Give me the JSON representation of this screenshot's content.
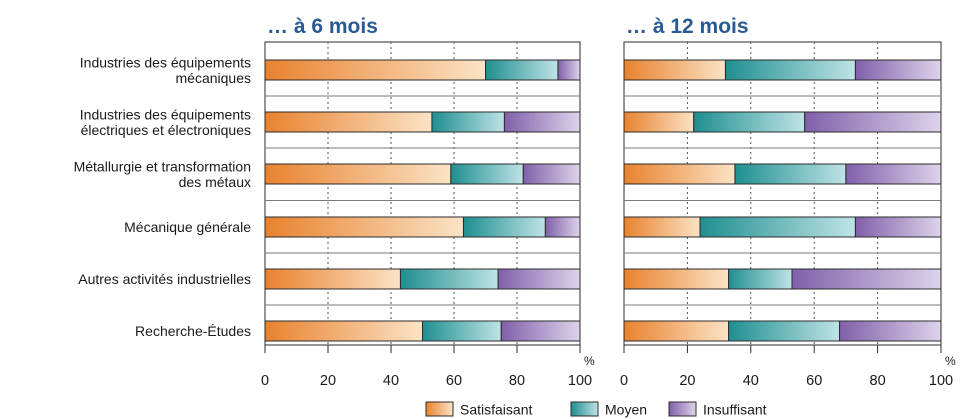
{
  "chart_data": [
    {
      "type": "bar",
      "stacked": true,
      "orientation": "horizontal",
      "title": "… à 6 mois",
      "categories": [
        [
          "Industries des équipements",
          "mécaniques"
        ],
        [
          "Industries des équipements",
          "électriques et électroniques"
        ],
        [
          "Métallurgie et transformation",
          "des métaux"
        ],
        [
          "Mécanique générale"
        ],
        [
          "Autres activités industrielles"
        ],
        [
          "Recherche-Études"
        ]
      ],
      "series": [
        {
          "name": "Satisfaisant",
          "values": [
            70,
            53,
            59,
            63,
            43,
            50
          ]
        },
        {
          "name": "Moyen",
          "values": [
            23,
            23,
            23,
            26,
            31,
            25
          ]
        },
        {
          "name": "Insuffisant",
          "values": [
            7,
            24,
            18,
            11,
            26,
            25
          ]
        }
      ],
      "xlim": [
        0,
        100
      ],
      "xticks": [
        "0",
        "20",
        "40",
        "60",
        "80",
        "100"
      ],
      "unit": "%",
      "grid": true
    },
    {
      "type": "bar",
      "stacked": true,
      "orientation": "horizontal",
      "title": "… à 12 mois",
      "series": [
        {
          "name": "Satisfaisant",
          "values": [
            32,
            22,
            35,
            24,
            33,
            33
          ]
        },
        {
          "name": "Moyen",
          "values": [
            41,
            35,
            35,
            49,
            20,
            35
          ]
        },
        {
          "name": "Insuffisant",
          "values": [
            27,
            43,
            30,
            27,
            47,
            32
          ]
        }
      ],
      "xlim": [
        0,
        100
      ],
      "xticks": [
        "0",
        "20",
        "40",
        "60",
        "80",
        "100"
      ],
      "unit": "%",
      "grid": true
    }
  ],
  "legend": {
    "placement": "bottom",
    "items": [
      "Satisfaisant",
      "Moyen",
      "Insuffisant"
    ]
  },
  "colors": {
    "satisfaisant": [
      "#e9822e",
      "#fbe3c6"
    ],
    "moyen": [
      "#1f8f90",
      "#bfe3e6"
    ],
    "insuffisant": [
      "#8060aa",
      "#ddd3ea"
    ],
    "title": "#2a5a93"
  }
}
